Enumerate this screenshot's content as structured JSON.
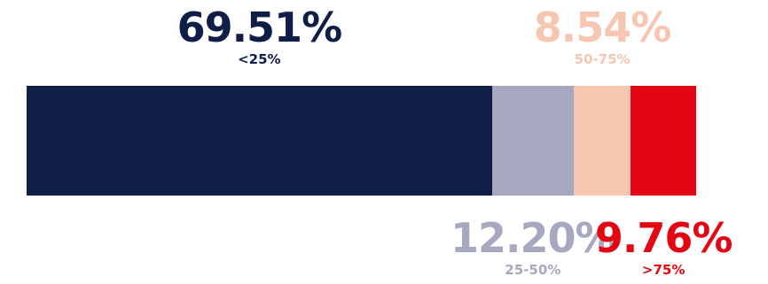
{
  "chart_data": {
    "type": "bar",
    "orientation": "horizontal-stacked",
    "categories": [
      "<25%",
      "25-50%",
      "50-75%",
      ">75%"
    ],
    "values": [
      69.51,
      12.2,
      8.54,
      9.76
    ],
    "value_labels": [
      "69.51%",
      "12.20%",
      "8.54%",
      "9.76%"
    ],
    "colors": [
      "#0e1e47",
      "#a6a8c0",
      "#f7c6b1",
      "#e30613"
    ],
    "label_placement": [
      "top",
      "bottom",
      "top",
      "bottom"
    ],
    "xlim": [
      0,
      100
    ],
    "title": "",
    "xlabel": "",
    "ylabel": ""
  }
}
